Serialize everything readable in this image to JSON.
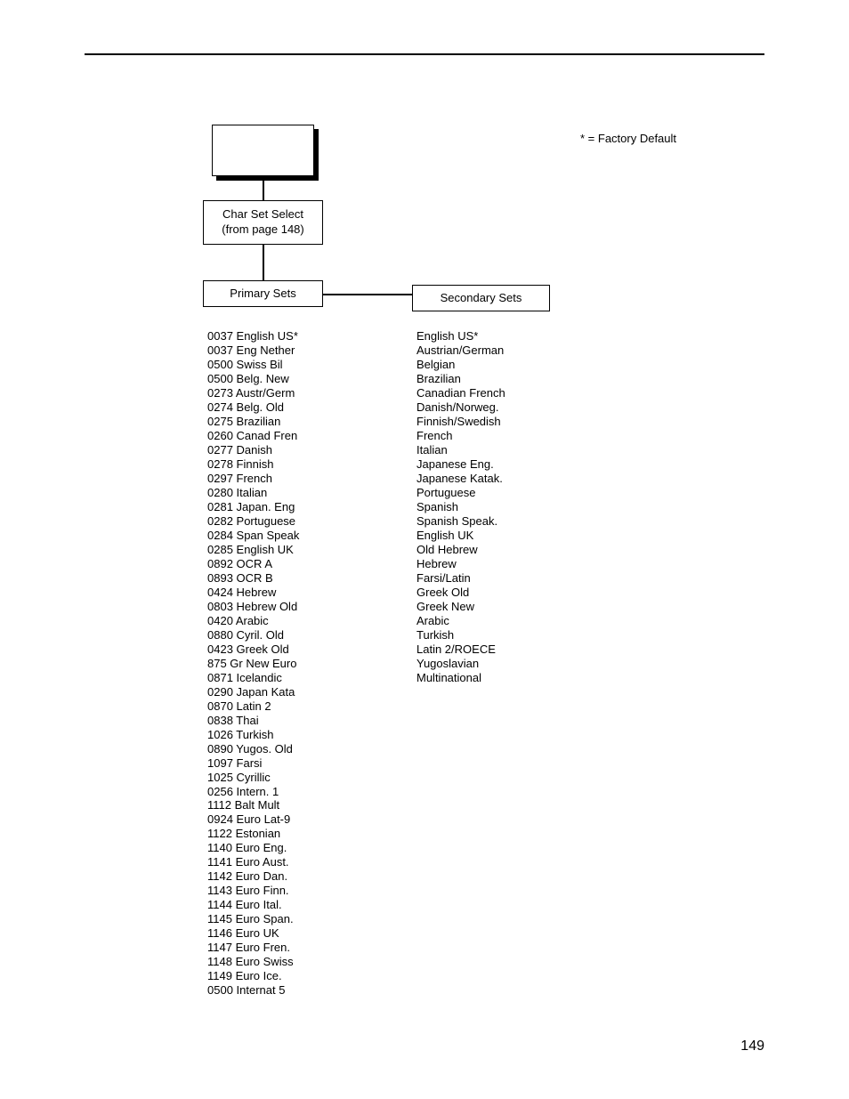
{
  "page": {
    "number": "149",
    "footnote": "* = Factory Default"
  },
  "boxes": {
    "charset_line1": "Char Set Select",
    "charset_line2": "(from page 148)",
    "primary": "Primary Sets",
    "secondary": "Secondary Sets"
  },
  "primary_sets": [
    "0037 English US*",
    "0037 Eng Nether",
    "0500 Swiss Bil",
    "0500 Belg. New",
    "0273 Austr/Germ",
    "0274 Belg. Old",
    "0275 Brazilian",
    "0260 Canad Fren",
    "0277 Danish",
    "0278 Finnish",
    "0297 French",
    "0280 Italian",
    "0281 Japan. Eng",
    "0282 Portuguese",
    "0284 Span Speak",
    "0285 English UK",
    "0892 OCR A",
    "0893 OCR B",
    "0424 Hebrew",
    "0803 Hebrew Old",
    "0420 Arabic",
    "0880 Cyril. Old",
    "0423 Greek Old",
    "875 Gr New Euro",
    "0871 Icelandic",
    "0290 Japan Kata",
    "0870 Latin 2",
    "0838 Thai",
    "1026 Turkish",
    "0890 Yugos. Old",
    "1097 Farsi",
    "1025 Cyrillic",
    "0256 Intern. 1",
    "1112 Balt Mult",
    "0924 Euro Lat-9",
    "1122 Estonian",
    "1140 Euro Eng.",
    "1141 Euro Aust.",
    "1142 Euro Dan.",
    "1143 Euro Finn.",
    "1144 Euro Ital.",
    "1145 Euro Span.",
    "1146 Euro UK",
    "1147 Euro Fren.",
    "1148 Euro Swiss",
    "1149 Euro Ice.",
    "0500 Internat 5"
  ],
  "secondary_sets": [
    "English US*",
    "Austrian/German",
    "Belgian",
    "Brazilian",
    "Canadian French",
    "Danish/Norweg.",
    "Finnish/Swedish",
    "French",
    "Italian",
    "Japanese Eng.",
    "Japanese Katak.",
    "Portuguese",
    "Spanish",
    "Spanish Speak.",
    "English UK",
    "Old Hebrew",
    "Hebrew",
    "Farsi/Latin",
    "Greek Old",
    "Greek New",
    "Arabic",
    "Turkish",
    "Latin 2/ROECE",
    "Yugoslavian",
    "Multinational"
  ]
}
